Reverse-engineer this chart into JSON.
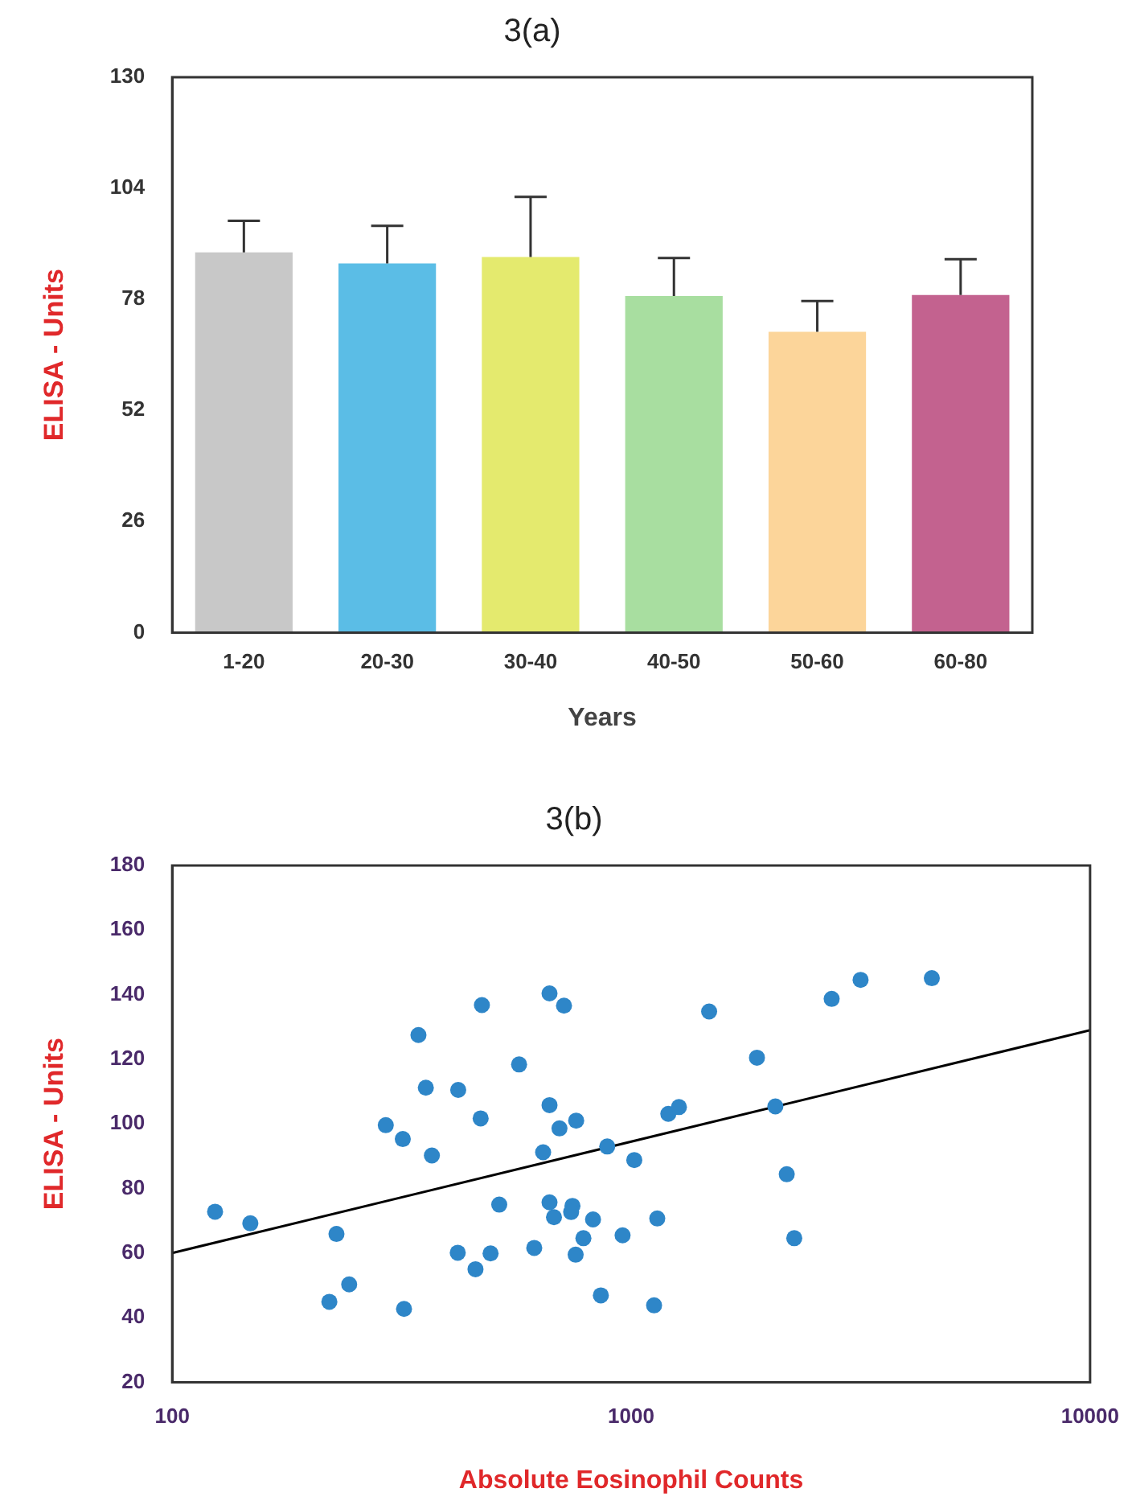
{
  "chart_data": [
    {
      "type": "bar",
      "title": "3(a)",
      "xlabel": "Years",
      "ylabel": "ELISA - Units",
      "categories": [
        "1-20",
        "20-30",
        "30-40",
        "40-50",
        "50-60",
        "60-80"
      ],
      "values": [
        89,
        86.4,
        87.9,
        78.8,
        70.4,
        79
      ],
      "errors": [
        [
          89,
          96.4
        ],
        [
          86.4,
          95.2
        ],
        [
          87.9,
          102
        ],
        [
          78.8,
          87.7
        ],
        [
          70.4,
          77.6
        ],
        [
          79,
          87.4
        ]
      ],
      "colors": [
        "#c8c8c8",
        "#5bbde6",
        "#e4ea6e",
        "#a8dea0",
        "#fcd59a",
        "#c3628f"
      ],
      "ylim": [
        0,
        130
      ],
      "yticks": [
        0,
        26,
        52,
        78,
        104,
        130
      ],
      "grid": false,
      "legend": false
    },
    {
      "type": "scatter",
      "title": "3(b)",
      "xlabel": "Absolute Eosinophil Counts",
      "ylabel": "ELISA - Units",
      "log": "x",
      "xlim": [
        100,
        10000
      ],
      "xticks": [
        100,
        1000,
        10000
      ],
      "ylim": [
        20,
        180
      ],
      "yticks": [
        20,
        40,
        60,
        80,
        100,
        120,
        140,
        160,
        180
      ],
      "grid": false,
      "legend": false,
      "series": [
        {
          "type": "scatter",
          "marker": "circle",
          "color": "#2e86c8",
          "x": [
            124,
            148,
            228,
            243,
            220,
            320,
            344,
            292,
            318,
            368,
            357,
            420,
            470,
            473,
            419,
            458,
            494,
            516,
            570,
            615,
            643,
            664,
            714,
            664,
            698,
            759,
            664,
            679,
            745,
            740,
            826,
            787,
            757,
            887,
            859,
            958,
            1016,
            1140,
            1122,
            1205,
            1271,
            1479,
            1880,
            2062,
            2183,
            2267,
            2735,
            3162,
            4520
          ],
          "values": [
            72.8,
            69.2,
            65.9,
            50.3,
            44.9,
            42.7,
            127.5,
            99.6,
            95.3,
            90.2,
            111.2,
            110.5,
            101.7,
            136.8,
            60.1,
            55,
            59.9,
            75,
            118.4,
            61.6,
            91.2,
            140.4,
            136.6,
            105.8,
            98.6,
            101,
            75.7,
            71.1,
            74.6,
            72.7,
            70.4,
            64.6,
            59.5,
            93,
            46.9,
            65.5,
            88.8,
            70.7,
            43.8,
            103.1,
            105.2,
            134.8,
            120.5,
            105.4,
            84.4,
            64.6,
            138.7,
            144.6,
            145.1
          ]
        },
        {
          "type": "line",
          "marker": "none",
          "color": "#000000",
          "x": [
            100,
            10000
          ],
          "values": [
            60,
            129
          ]
        }
      ]
    }
  ]
}
